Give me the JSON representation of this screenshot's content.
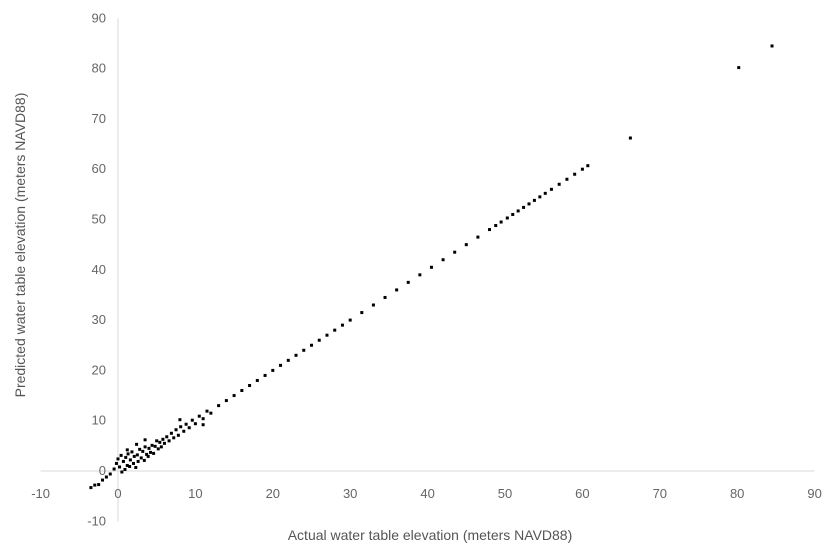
{
  "chart_data": {
    "type": "scatter",
    "title": "",
    "xlabel": "Actual water table elevation (meters NAVD88)",
    "ylabel": "Predicted water table elevation (meters NAVD88)",
    "xlim": [
      -10,
      90
    ],
    "ylim": [
      -10,
      90
    ],
    "x_ticks": [
      "-10",
      "0",
      "10",
      "20",
      "30",
      "40",
      "50",
      "60",
      "70",
      "80",
      "90"
    ],
    "y_ticks": [
      "-10",
      "0",
      "10",
      "20",
      "30",
      "40",
      "50",
      "60",
      "70",
      "80",
      "90"
    ],
    "grid": false,
    "legend": "none",
    "marker_color": "#000000",
    "series": [
      {
        "points": [
          [
            -3.5,
            -3.3
          ],
          [
            -3,
            -2.8
          ],
          [
            -2.5,
            -2.7
          ],
          [
            -2,
            -1.8
          ],
          [
            -1.5,
            -1.2
          ],
          [
            -1,
            -0.6
          ],
          [
            -0.5,
            0.4
          ],
          [
            -0.2,
            1.5
          ],
          [
            0,
            2.4
          ],
          [
            0.2,
            0.8
          ],
          [
            0.4,
            3.1
          ],
          [
            0.5,
            -0.2
          ],
          [
            0.7,
            1.9
          ],
          [
            0.9,
            0.3
          ],
          [
            1,
            2.7
          ],
          [
            1.2,
            1.1
          ],
          [
            1.3,
            3.4
          ],
          [
            1.5,
            0.9
          ],
          [
            1.6,
            2.2
          ],
          [
            1.8,
            3.8
          ],
          [
            2,
            1.5
          ],
          [
            2.1,
            2.9
          ],
          [
            2.3,
            0.7
          ],
          [
            2.5,
            3.2
          ],
          [
            2.6,
            1.9
          ],
          [
            2.8,
            4.3
          ],
          [
            3,
            2.6
          ],
          [
            3.2,
            3.9
          ],
          [
            3.4,
            2.1
          ],
          [
            3.5,
            4.8
          ],
          [
            3.7,
            3.3
          ],
          [
            3.9,
            2.9
          ],
          [
            4,
            4.5
          ],
          [
            4.2,
            3.7
          ],
          [
            4.4,
            5.1
          ],
          [
            4.6,
            3.5
          ],
          [
            4.8,
            4.9
          ],
          [
            5,
            6
          ],
          [
            5.2,
            4.4
          ],
          [
            5.4,
            5.7
          ],
          [
            5.6,
            4.8
          ],
          [
            5.8,
            6.3
          ],
          [
            6,
            5.5
          ],
          [
            6.3,
            6.8
          ],
          [
            6.6,
            6
          ],
          [
            6.9,
            7.5
          ],
          [
            7.2,
            6.6
          ],
          [
            7.5,
            8.2
          ],
          [
            7.8,
            7.1
          ],
          [
            8.1,
            8.8
          ],
          [
            8.5,
            7.9
          ],
          [
            8.8,
            9.3
          ],
          [
            9.2,
            8.6
          ],
          [
            9.6,
            10.1
          ],
          [
            10,
            9.4
          ],
          [
            10.5,
            10.9
          ],
          [
            11,
            10.4
          ],
          [
            11.5,
            11.9
          ],
          [
            12,
            11.5
          ],
          [
            3.5,
            6.2
          ],
          [
            1.2,
            4.2
          ],
          [
            2.4,
            5.3
          ],
          [
            8,
            10.2
          ],
          [
            11,
            9.2
          ],
          [
            13,
            13
          ],
          [
            14,
            14
          ],
          [
            15,
            15
          ],
          [
            16,
            16
          ],
          [
            17,
            17
          ],
          [
            18,
            18
          ],
          [
            19,
            19
          ],
          [
            20,
            20
          ],
          [
            21,
            21
          ],
          [
            22,
            22
          ],
          [
            23,
            23
          ],
          [
            24,
            24
          ],
          [
            25,
            25
          ],
          [
            26,
            26
          ],
          [
            27,
            27
          ],
          [
            28,
            28
          ],
          [
            29,
            29
          ],
          [
            30,
            30
          ],
          [
            31.5,
            31.5
          ],
          [
            33,
            33
          ],
          [
            34.5,
            34.5
          ],
          [
            36,
            36
          ],
          [
            37.5,
            37.5
          ],
          [
            39,
            39
          ],
          [
            40.5,
            40.5
          ],
          [
            42,
            42
          ],
          [
            43.5,
            43.5
          ],
          [
            45,
            45
          ],
          [
            46.5,
            46.5
          ],
          [
            48,
            48
          ],
          [
            48.8,
            48.8
          ],
          [
            49.5,
            49.5
          ],
          [
            50.3,
            50.3
          ],
          [
            51,
            51
          ],
          [
            51.7,
            51.7
          ],
          [
            52.4,
            52.4
          ],
          [
            53.1,
            53.1
          ],
          [
            53.8,
            53.8
          ],
          [
            54.5,
            54.5
          ],
          [
            55.2,
            55.2
          ],
          [
            56,
            56
          ],
          [
            57,
            57
          ],
          [
            58,
            58
          ],
          [
            59,
            59
          ],
          [
            60,
            60
          ],
          [
            60.7,
            60.7
          ],
          [
            66.2,
            66.2
          ],
          [
            80.2,
            80.2
          ],
          [
            84.5,
            84.5
          ]
        ]
      }
    ]
  }
}
